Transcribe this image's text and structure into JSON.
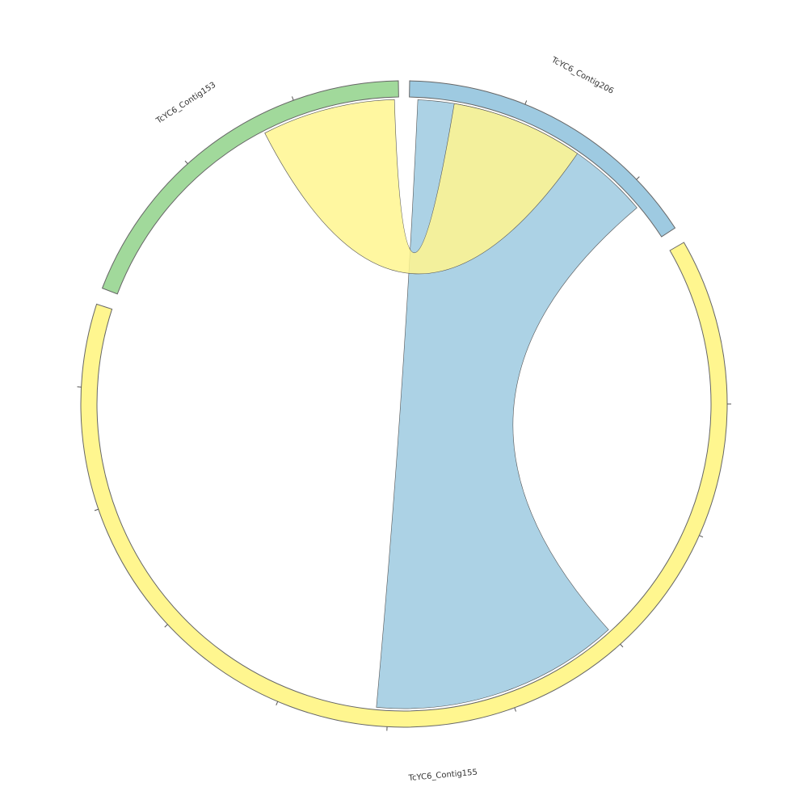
{
  "chart_data": {
    "type": "chord",
    "segments": [
      {
        "name": "TcYC6_Contig206",
        "color": "#9ecae1",
        "start_deg": 1,
        "end_deg": 57
      },
      {
        "name": "TcYC6_Contig155",
        "color": "#fff68f",
        "start_deg": 60,
        "end_deg": 288
      },
      {
        "name": "TcYC6_Contig153",
        "color": "#a1d99b",
        "start_deg": 291,
        "end_deg": 359
      }
    ],
    "links": [
      {
        "from": "TcYC6_Contig206",
        "from_deg": [
          2.6,
          49.9
        ],
        "to": "TcYC6_Contig155",
        "to_deg": [
          137.8,
          185.2
        ],
        "color": "#9ecae1"
      },
      {
        "from": "TcYC6_Contig153",
        "from_deg": [
          332.8,
          358.2
        ],
        "to": "TcYC6_Contig206",
        "to_deg": [
          9.5,
          34.7
        ],
        "color": "#fff68f"
      }
    ]
  }
}
